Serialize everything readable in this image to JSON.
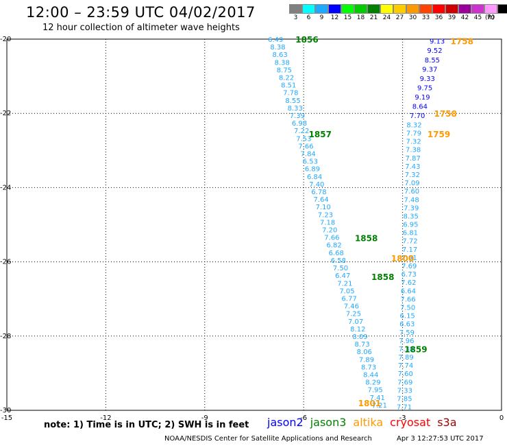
{
  "header": {
    "title": "12:00 – 23:59 UTC 04/02/2017",
    "subtitle": "12 hour collection of altimeter wave heights"
  },
  "color_legend": {
    "unit": "(ft)",
    "bins": [
      {
        "label": "3",
        "color": "#808080"
      },
      {
        "label": "6",
        "color": "#00ffff"
      },
      {
        "label": "9",
        "color": "#1fa8ff"
      },
      {
        "label": "12",
        "color": "#0000ff"
      },
      {
        "label": "15",
        "color": "#00ff00"
      },
      {
        "label": "18",
        "color": "#00cc00"
      },
      {
        "label": "21",
        "color": "#008000"
      },
      {
        "label": "24",
        "color": "#ffff00"
      },
      {
        "label": "27",
        "color": "#ffcc00"
      },
      {
        "label": "30",
        "color": "#ff9900"
      },
      {
        "label": "33",
        "color": "#ff4400"
      },
      {
        "label": "36",
        "color": "#ff0000"
      },
      {
        "label": "39",
        "color": "#cc0000"
      },
      {
        "label": "42",
        "color": "#990099"
      },
      {
        "label": "45",
        "color": "#cc33cc"
      },
      {
        "label": "70",
        "color": "#ff99ff"
      },
      {
        "label": "",
        "color": "#000000"
      }
    ]
  },
  "map": {
    "lon_range": [
      -15,
      0
    ],
    "lat_range": [
      -30,
      -20
    ],
    "x_ticks": [
      "-15",
      "-12",
      "-9",
      "-6",
      "-3",
      "0"
    ],
    "y_ticks": [
      "-20",
      "-22",
      "-24",
      "-26",
      "-28",
      "-30"
    ],
    "grid": "dotted",
    "colors": {
      "light_blue": "#1fa8ff",
      "dark_blue": "#0000ff",
      "green": "#008000",
      "orange": "#ff9900"
    },
    "track_values_left": [
      "6.49",
      "8.38",
      "8.63",
      "8.38",
      "8.75",
      "8.22",
      "8.51",
      "7.78",
      "8.55",
      "8.33",
      "7.39",
      "6.98",
      "7.22",
      "7.53",
      "7.66",
      "7.84",
      "6.53",
      "6.89",
      "6.84",
      "7.40",
      "6.78",
      "7.64",
      "7.10",
      "7.23",
      "7.18",
      "7.20",
      "7.66",
      "6.82",
      "6.68",
      "6.58",
      "7.50",
      "6.47",
      "7.21",
      "7.05",
      "6.77",
      "7.46",
      "7.25",
      "7.07",
      "8.12",
      "8.09",
      "8.73",
      "8.06",
      "7.89",
      "8.73",
      "8.44",
      "8.29",
      "7.95",
      "7.41",
      "7.21"
    ],
    "track_values_right_top": [
      "9.13",
      "9.52",
      "8.55",
      "9.37",
      "9.33",
      "9.75",
      "9.19",
      "8.64",
      "7.70"
    ],
    "track_values_right": [
      "8.32",
      "7.79",
      "7.32",
      "7.38",
      "7.87",
      "7.43",
      "7.32",
      "7.09",
      "7.60",
      "7.48",
      "7.39",
      "8.35",
      "6.95",
      "6.81",
      "7.72",
      "7.17",
      "7.91",
      "7.69",
      "6.73",
      "7.62",
      "6.64",
      "7.66",
      "7.50",
      "6.15",
      "6.63",
      "7.59",
      "7.96",
      "7.38",
      "7.89",
      "7.74",
      "7.60",
      "7.69",
      "7.33",
      "7.85",
      "7.71"
    ],
    "time_labels": [
      {
        "text": "1856",
        "sat": "jason3",
        "lon": -5.9,
        "lat": -20.0
      },
      {
        "text": "1758",
        "sat": "altika",
        "lon": -1.2,
        "lat": -20.05
      },
      {
        "text": "1758",
        "sat": "altika",
        "lon": -1.7,
        "lat": -22.0
      },
      {
        "text": "1759",
        "sat": "altika",
        "lon": -1.9,
        "lat": -22.55
      },
      {
        "text": "1857",
        "sat": "jason3",
        "lon": -5.5,
        "lat": -22.55
      },
      {
        "text": "1858",
        "sat": "jason3",
        "lon": -4.1,
        "lat": -25.35
      },
      {
        "text": "1800",
        "sat": "altika",
        "lon": -3.0,
        "lat": -25.9
      },
      {
        "text": "1858",
        "sat": "jason3",
        "lon": -3.6,
        "lat": -26.4
      },
      {
        "text": "1859",
        "sat": "jason3",
        "lon": -2.6,
        "lat": -28.35
      },
      {
        "text": "1801",
        "sat": "altika",
        "lon": -4.0,
        "lat": -29.8
      }
    ]
  },
  "note": "note: 1) Time is in UTC; 2) SWH is in feet",
  "satellites": [
    {
      "name": "jason2",
      "color": "#0000ff"
    },
    {
      "name": "jason3",
      "color": "#008000"
    },
    {
      "name": "altika",
      "color": "#ff9900"
    },
    {
      "name": "cryosat",
      "color": "#ff0000"
    },
    {
      "name": "s3a",
      "color": "#990000"
    }
  ],
  "footer": {
    "center": "NOAA/NESDIS Center for Satellite Applications and Research",
    "right": "Apr  3 12:27:53 UTC 2017"
  }
}
